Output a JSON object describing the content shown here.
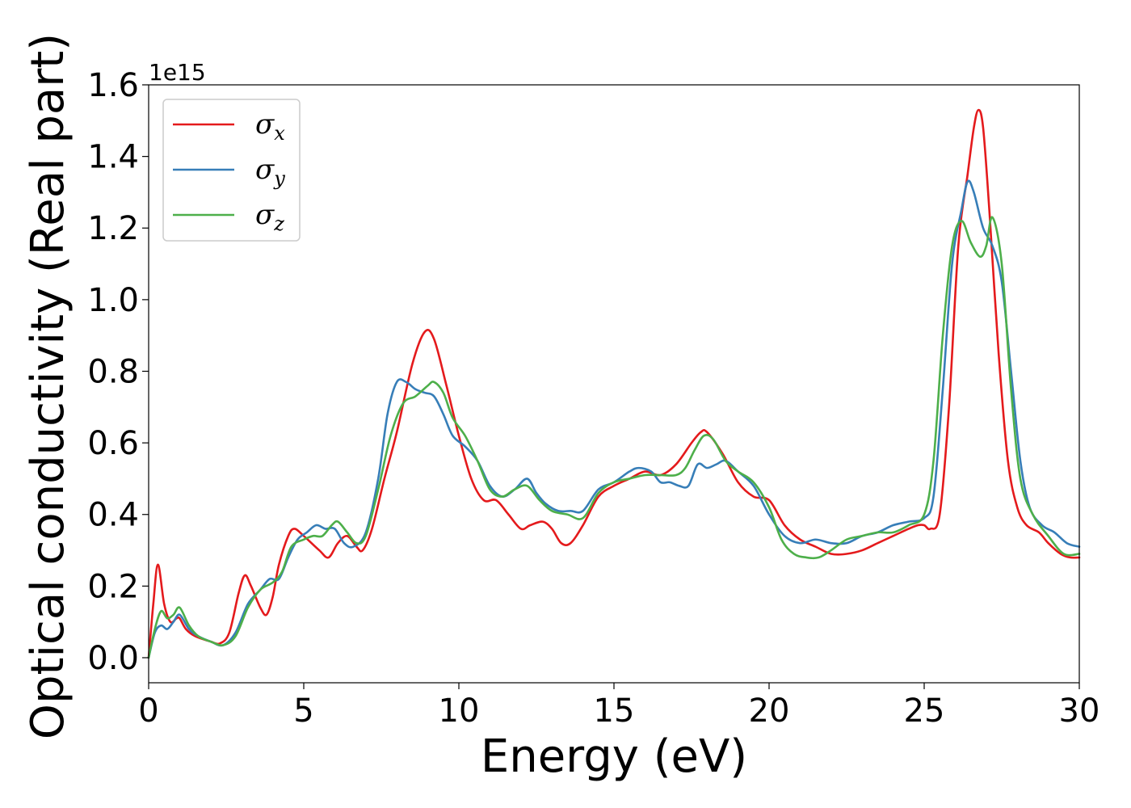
{
  "chart_data": {
    "type": "line",
    "xlabel": "Energy (eV)",
    "ylabel": "Optical conductivity (Real part)",
    "offset_label": "1e15",
    "xlim": [
      0,
      30
    ],
    "ylim": [
      -0.07,
      1.6
    ],
    "x_ticks": [
      0,
      5,
      10,
      15,
      20,
      25,
      30
    ],
    "x_tick_labels": [
      "0",
      "5",
      "10",
      "15",
      "20",
      "25",
      "30"
    ],
    "y_ticks": [
      0.0,
      0.2,
      0.4,
      0.6,
      0.8,
      1.0,
      1.2,
      1.4,
      1.6
    ],
    "y_tick_labels": [
      "0.0",
      "0.2",
      "0.4",
      "0.6",
      "0.8",
      "1.0",
      "1.2",
      "1.4",
      "1.6"
    ],
    "grid": false,
    "legend_position": "top-left",
    "series": [
      {
        "name": "σx",
        "symbol": "σ",
        "subscript": "x",
        "color": "#e41a1c",
        "x": [
          0,
          0.15,
          0.3,
          0.5,
          0.7,
          0.9,
          1.0,
          1.2,
          1.5,
          2.0,
          2.3,
          2.6,
          2.9,
          3.1,
          3.3,
          3.6,
          3.8,
          4.0,
          4.2,
          4.5,
          4.7,
          5.0,
          5.5,
          5.8,
          6.1,
          6.4,
          6.7,
          6.9,
          7.2,
          7.6,
          8.0,
          8.5,
          8.9,
          9.2,
          9.6,
          10.0,
          10.4,
          10.8,
          11.2,
          11.6,
          12.0,
          12.3,
          12.7,
          13.0,
          13.3,
          13.6,
          14.0,
          14.5,
          15.0,
          15.5,
          16.0,
          16.5,
          17.0,
          17.5,
          17.8,
          18.0,
          18.5,
          19.0,
          19.5,
          20.0,
          20.5,
          21.0,
          21.5,
          22.0,
          22.5,
          23.0,
          23.5,
          24.0,
          24.5,
          24.8,
          25.0,
          25.2,
          25.5,
          25.8,
          26.1,
          26.4,
          26.6,
          26.75,
          26.9,
          27.1,
          27.4,
          27.7,
          28.0,
          28.3,
          28.7,
          29.0,
          29.4,
          29.7,
          30.0
        ],
        "y": [
          0.0,
          0.15,
          0.26,
          0.15,
          0.1,
          0.11,
          0.11,
          0.08,
          0.06,
          0.045,
          0.04,
          0.07,
          0.18,
          0.23,
          0.2,
          0.14,
          0.12,
          0.17,
          0.26,
          0.34,
          0.36,
          0.34,
          0.3,
          0.28,
          0.32,
          0.34,
          0.31,
          0.3,
          0.36,
          0.5,
          0.63,
          0.82,
          0.91,
          0.89,
          0.76,
          0.62,
          0.5,
          0.44,
          0.44,
          0.4,
          0.36,
          0.37,
          0.38,
          0.36,
          0.32,
          0.32,
          0.37,
          0.45,
          0.48,
          0.5,
          0.52,
          0.51,
          0.54,
          0.6,
          0.63,
          0.63,
          0.57,
          0.49,
          0.45,
          0.44,
          0.37,
          0.33,
          0.31,
          0.29,
          0.29,
          0.3,
          0.32,
          0.34,
          0.36,
          0.37,
          0.37,
          0.36,
          0.4,
          0.7,
          1.15,
          1.35,
          1.48,
          1.53,
          1.48,
          1.25,
          0.85,
          0.55,
          0.42,
          0.37,
          0.35,
          0.32,
          0.29,
          0.28,
          0.28
        ]
      },
      {
        "name": "σy",
        "symbol": "σ",
        "subscript": "y",
        "color": "#377eb8",
        "x": [
          0,
          0.2,
          0.4,
          0.6,
          0.8,
          1.0,
          1.3,
          1.6,
          2.0,
          2.4,
          2.8,
          3.2,
          3.6,
          3.9,
          4.2,
          4.5,
          4.8,
          5.1,
          5.4,
          5.7,
          6.0,
          6.3,
          6.6,
          7.0,
          7.4,
          7.7,
          8.0,
          8.3,
          8.6,
          8.9,
          9.2,
          9.5,
          9.8,
          10.2,
          10.6,
          11.0,
          11.4,
          11.8,
          12.2,
          12.5,
          12.8,
          13.2,
          13.6,
          14.0,
          14.5,
          15.0,
          15.5,
          15.8,
          16.2,
          16.5,
          16.8,
          17.1,
          17.4,
          17.7,
          18.0,
          18.3,
          18.6,
          19.0,
          19.5,
          20.0,
          20.5,
          21.0,
          21.5,
          22.0,
          22.5,
          23.0,
          23.5,
          24.0,
          24.5,
          25.0,
          25.3,
          25.6,
          25.9,
          26.2,
          26.4,
          26.6,
          26.9,
          27.2,
          27.5,
          27.8,
          28.1,
          28.4,
          28.8,
          29.2,
          29.6,
          30.0
        ],
        "y": [
          0.0,
          0.07,
          0.09,
          0.08,
          0.1,
          0.12,
          0.08,
          0.06,
          0.045,
          0.035,
          0.07,
          0.15,
          0.19,
          0.22,
          0.22,
          0.28,
          0.33,
          0.35,
          0.37,
          0.36,
          0.36,
          0.32,
          0.31,
          0.35,
          0.5,
          0.68,
          0.77,
          0.77,
          0.75,
          0.74,
          0.73,
          0.68,
          0.62,
          0.59,
          0.55,
          0.48,
          0.45,
          0.47,
          0.5,
          0.46,
          0.43,
          0.41,
          0.41,
          0.41,
          0.47,
          0.49,
          0.52,
          0.53,
          0.52,
          0.49,
          0.49,
          0.48,
          0.48,
          0.54,
          0.53,
          0.54,
          0.55,
          0.52,
          0.48,
          0.4,
          0.34,
          0.32,
          0.33,
          0.32,
          0.32,
          0.34,
          0.35,
          0.37,
          0.38,
          0.39,
          0.45,
          0.75,
          1.1,
          1.25,
          1.33,
          1.3,
          1.2,
          1.15,
          1.05,
          0.8,
          0.55,
          0.42,
          0.37,
          0.35,
          0.32,
          0.31
        ]
      },
      {
        "name": "σz",
        "symbol": "σ",
        "subscript": "z",
        "color": "#4daf4a",
        "x": [
          0,
          0.2,
          0.4,
          0.6,
          0.8,
          1.0,
          1.3,
          1.6,
          2.0,
          2.4,
          2.8,
          3.2,
          3.6,
          4.0,
          4.3,
          4.6,
          5.0,
          5.3,
          5.6,
          5.9,
          6.1,
          6.4,
          6.7,
          7.0,
          7.4,
          7.8,
          8.2,
          8.6,
          9.0,
          9.2,
          9.5,
          9.8,
          10.2,
          10.6,
          11.0,
          11.4,
          11.8,
          12.2,
          12.6,
          13.0,
          13.5,
          14.0,
          14.5,
          15.0,
          15.5,
          16.0,
          16.5,
          17.0,
          17.3,
          17.6,
          17.9,
          18.2,
          18.6,
          19.0,
          19.5,
          20.0,
          20.4,
          20.8,
          21.2,
          21.6,
          22.0,
          22.5,
          23.0,
          23.5,
          24.0,
          24.5,
          25.0,
          25.3,
          25.6,
          25.9,
          26.2,
          26.5,
          26.8,
          27.0,
          27.2,
          27.5,
          27.8,
          28.1,
          28.5,
          29.0,
          29.5,
          30.0
        ],
        "y": [
          0.0,
          0.08,
          0.13,
          0.11,
          0.12,
          0.14,
          0.09,
          0.06,
          0.045,
          0.035,
          0.06,
          0.14,
          0.19,
          0.21,
          0.24,
          0.31,
          0.33,
          0.34,
          0.34,
          0.37,
          0.38,
          0.35,
          0.32,
          0.34,
          0.47,
          0.62,
          0.71,
          0.73,
          0.76,
          0.77,
          0.74,
          0.67,
          0.62,
          0.55,
          0.47,
          0.45,
          0.47,
          0.48,
          0.44,
          0.41,
          0.4,
          0.39,
          0.46,
          0.49,
          0.5,
          0.51,
          0.51,
          0.51,
          0.53,
          0.58,
          0.62,
          0.61,
          0.55,
          0.52,
          0.49,
          0.42,
          0.33,
          0.29,
          0.28,
          0.28,
          0.3,
          0.33,
          0.34,
          0.35,
          0.35,
          0.37,
          0.4,
          0.55,
          0.9,
          1.15,
          1.22,
          1.16,
          1.12,
          1.15,
          1.23,
          1.1,
          0.75,
          0.5,
          0.4,
          0.34,
          0.29,
          0.29
        ]
      }
    ]
  }
}
